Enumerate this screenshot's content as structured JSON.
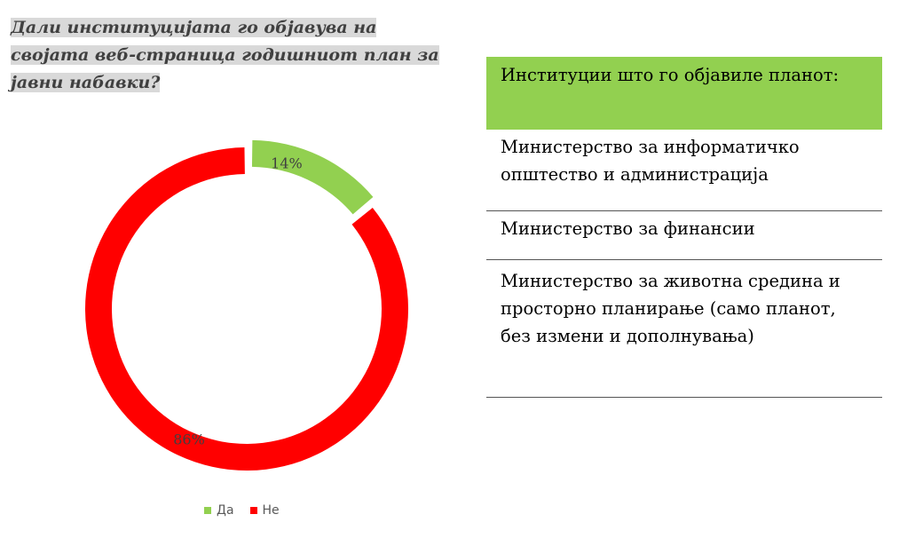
{
  "title": "Дали институцијата го објавува на својата веб-страница годишниот план за јавни набавки?",
  "chart_data": {
    "type": "pie",
    "variant": "donut",
    "categories": [
      "Да",
      "Не"
    ],
    "values": [
      14,
      86
    ],
    "labels": [
      "14%",
      "86%"
    ],
    "colors": [
      "#92d050",
      "#ff0000"
    ],
    "legend_position": "bottom"
  },
  "table": {
    "header": "Институции што го објавиле планот:",
    "header_color": "#92d050",
    "rows": [
      "Министерство за информатичко општество и администрација",
      "Министерство за финансии",
      "Министерство за животна средина и просторно планирање (само планот, без измени и дополнувања)"
    ]
  }
}
